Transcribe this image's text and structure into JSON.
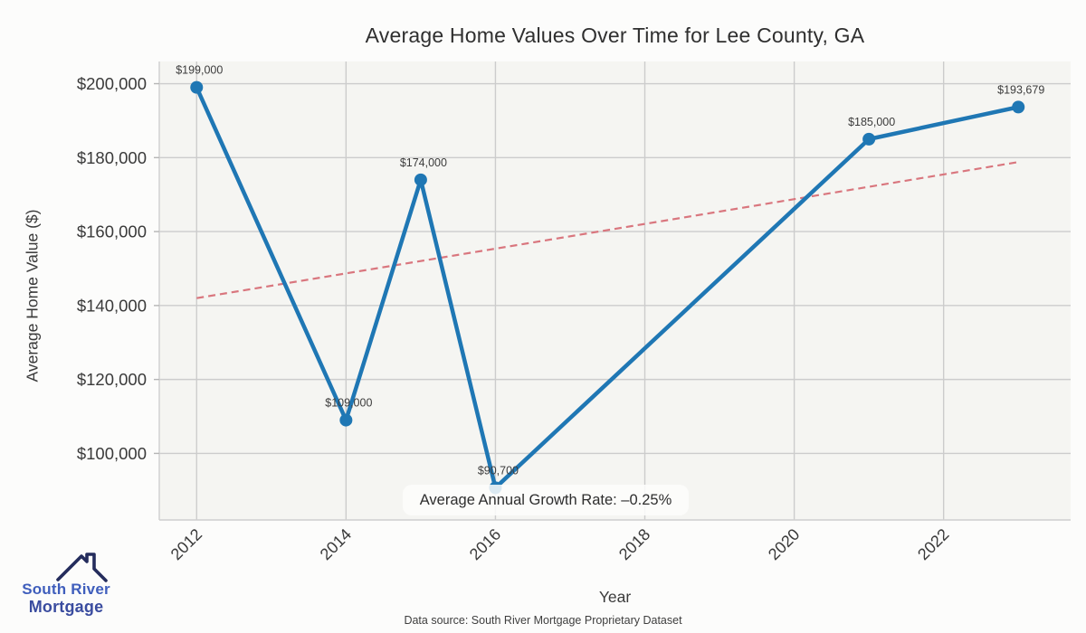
{
  "header": {
    "title": "Average Home Values Over Time for Lee County, GA"
  },
  "chart_data": {
    "type": "line",
    "title": "Average Home Values Over Time for Lee County, GA",
    "xlabel": "Year",
    "ylabel": "Average Home Value ($)",
    "x": [
      2012,
      2014,
      2015,
      2016,
      2021,
      2023
    ],
    "values": [
      199000,
      109000,
      174000,
      90700,
      185000,
      193679
    ],
    "point_labels": [
      "$199,000",
      "$109,000",
      "$174,000",
      "$90,700",
      "$185,000",
      "$193,679"
    ],
    "xticks": [
      2012,
      2014,
      2016,
      2018,
      2020,
      2022
    ],
    "yticks": [
      100000,
      120000,
      140000,
      160000,
      180000,
      200000
    ],
    "ytick_labels": [
      "$100,000",
      "$120,000",
      "$140,000",
      "$160,000",
      "$180,000",
      "$200,000"
    ],
    "xlim": [
      2011.5,
      2023.7
    ],
    "ylim": [
      82000,
      206000
    ],
    "grid": true,
    "legend": "none",
    "series_color": "#1f77b4",
    "trend": {
      "x": [
        2012,
        2023
      ],
      "values": [
        142000,
        178800
      ],
      "color": "#d9767e",
      "style": "dashed"
    },
    "annotation": "Average Annual Growth Rate: –0.25%",
    "colors": {
      "axes_background": "#f5f5f2",
      "grid": "#cccccc",
      "tick_text": "#3a3a3a"
    }
  },
  "footer": {
    "source": "Data source: South River Mortgage Proprietary Dataset"
  },
  "logo": {
    "line1": "South River",
    "line2": "Mortgage",
    "icon": "house-roof-icon",
    "icon_color": "#242C5C"
  }
}
